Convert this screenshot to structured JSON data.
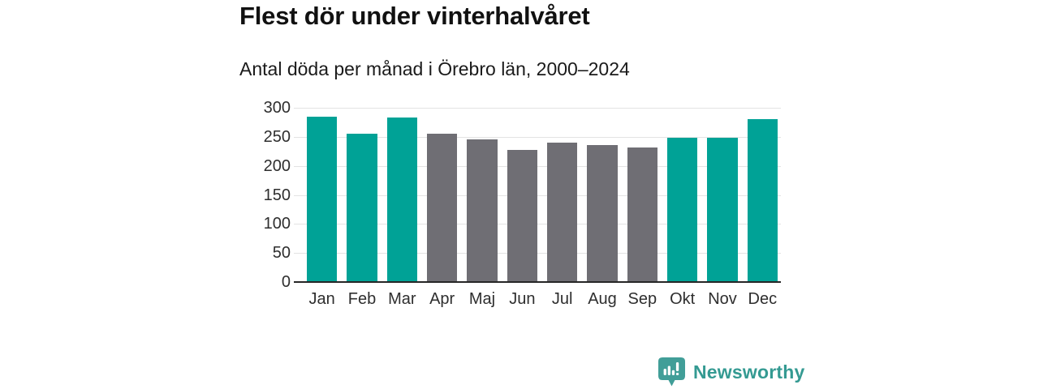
{
  "header": {
    "title": "Flest dör under vinterhalvåret",
    "subtitle": "Antal döda per månad i Örebro län, 2000–2024"
  },
  "chart_data": {
    "type": "bar",
    "title": "Flest dör under vinterhalvåret",
    "subtitle": "Antal döda per månad i Örebro län, 2000–2024",
    "categories": [
      "Jan",
      "Feb",
      "Mar",
      "Apr",
      "Maj",
      "Jun",
      "Jul",
      "Aug",
      "Sep",
      "Okt",
      "Nov",
      "Dec"
    ],
    "values": [
      285,
      256,
      283,
      255,
      246,
      228,
      240,
      236,
      231,
      248,
      249,
      280
    ],
    "highlighted": [
      true,
      true,
      true,
      false,
      false,
      false,
      false,
      false,
      false,
      true,
      true,
      true
    ],
    "xlabel": "",
    "ylabel": "",
    "ylim": [
      0,
      300
    ],
    "yticks": [
      0,
      50,
      100,
      150,
      200,
      250,
      300
    ],
    "grid": true,
    "legend": "none",
    "palette": {
      "highlight": "#00a296",
      "muted": "#6f6e74"
    }
  },
  "colors": {
    "bar_highlight": "#00a296",
    "bar_muted": "#6f6e74",
    "gridline": "#e3e3e3",
    "axis": "#262626",
    "brand_teal": "#349a92",
    "logo_icon_fill": "#419e98"
  },
  "footer": {
    "brand": "Newsworthy",
    "logo_icon": "newsworthy-chart-bubble-icon"
  }
}
